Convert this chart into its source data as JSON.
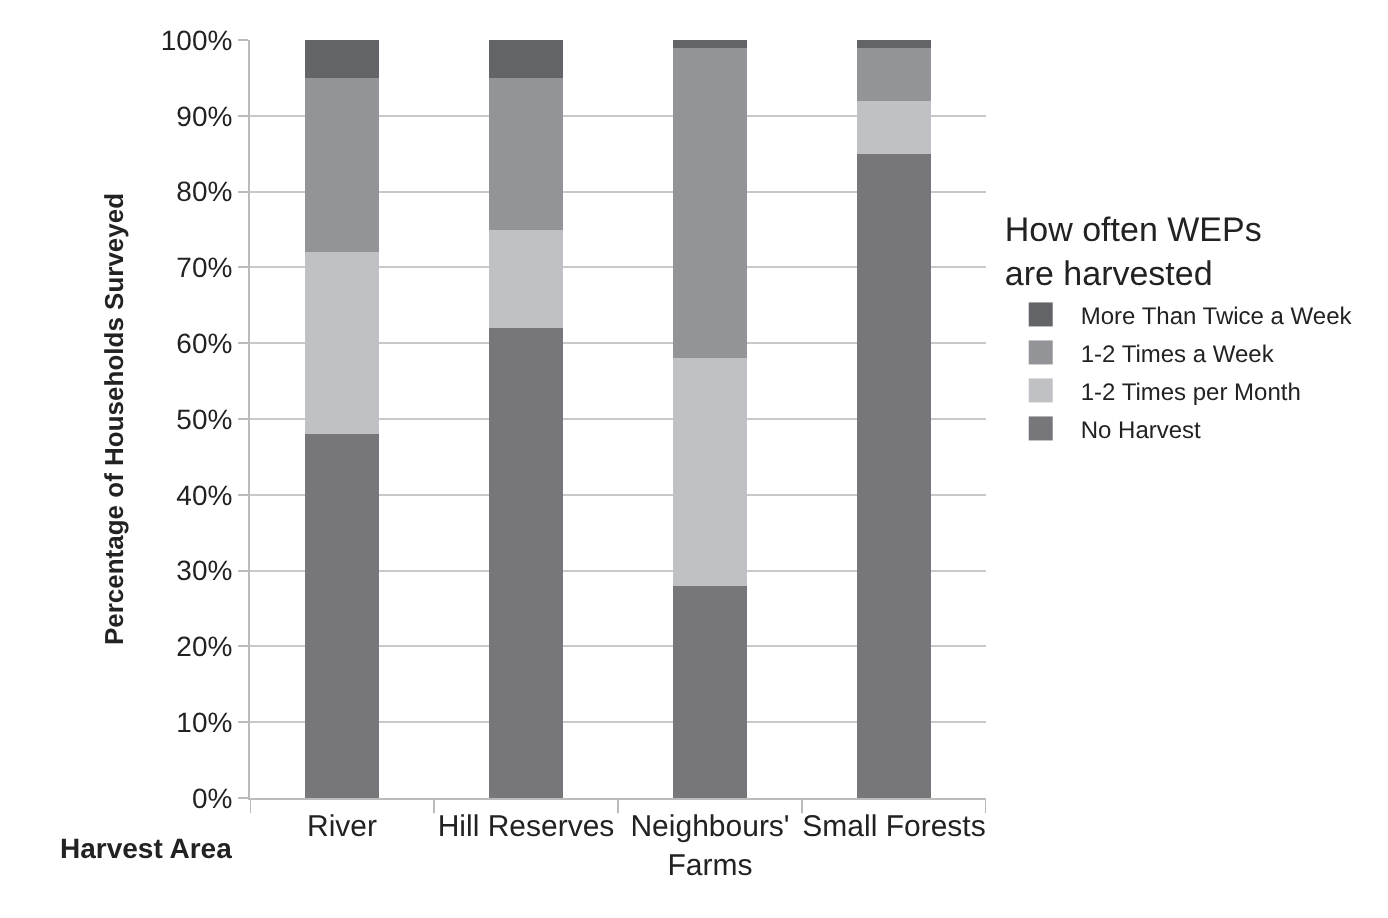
{
  "chart_data": {
    "type": "bar",
    "stacked": true,
    "xlabel": "Harvest Area",
    "ylabel": "Percentage of Households Surveyed",
    "legend_title": "How often WEPs are harvested",
    "categories": [
      "River",
      "Hill Reserves",
      "Neighbours' Farms",
      "Small Forests"
    ],
    "series": [
      {
        "name": "No Harvest",
        "color": "#77777b",
        "values": [
          48,
          62,
          28,
          85
        ]
      },
      {
        "name": "1-2 Times per Month",
        "color": "#c0c1c4",
        "values": [
          24,
          13,
          30,
          7
        ]
      },
      {
        "name": "1-2 Times a Week",
        "color": "#939497",
        "values": [
          23,
          20,
          41,
          7
        ]
      },
      {
        "name": "More Than Twice a Week",
        "color": "#636468",
        "values": [
          5,
          5,
          1,
          1
        ]
      }
    ],
    "ylim": [
      0,
      100
    ],
    "yticks": [
      {
        "value": 0,
        "label": "0%"
      },
      {
        "value": 10,
        "label": "10%"
      },
      {
        "value": 20,
        "label": "20%"
      },
      {
        "value": 30,
        "label": "30%"
      },
      {
        "value": 40,
        "label": "40%"
      },
      {
        "value": 50,
        "label": "50%"
      },
      {
        "value": 60,
        "label": "60%"
      },
      {
        "value": 70,
        "label": "70%"
      },
      {
        "value": 80,
        "label": "80%"
      },
      {
        "value": 90,
        "label": "90%"
      },
      {
        "value": 100,
        "label": "100%"
      }
    ],
    "grid": "y",
    "legend": "right"
  }
}
